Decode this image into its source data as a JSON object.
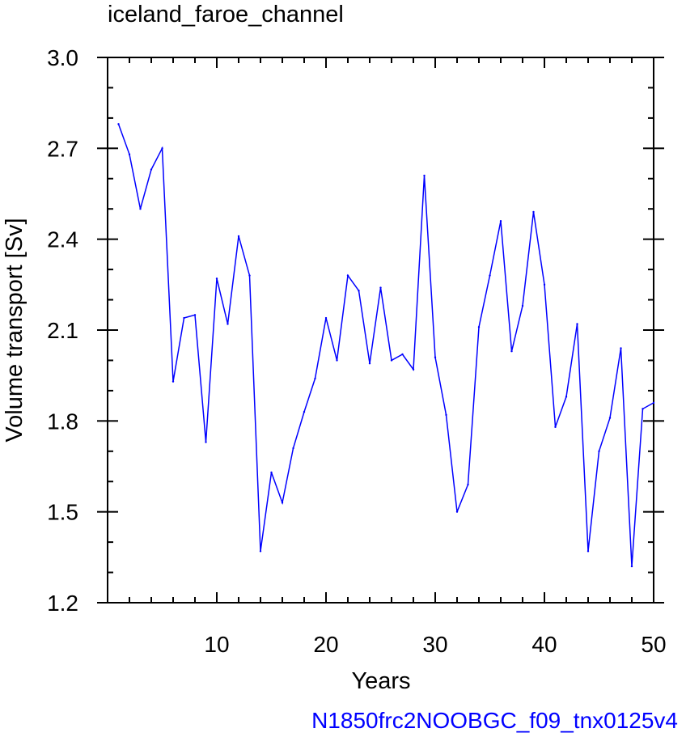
{
  "chart_data": {
    "type": "line",
    "title": "iceland_faroe_channel",
    "xlabel": "Years",
    "ylabel": "Volume transport [Sv]",
    "caption": "N1850frc2NOOBGC_f09_tnx0125v4",
    "xlim": [
      0,
      50
    ],
    "ylim": [
      1.2,
      3.0
    ],
    "xticks": [
      10,
      20,
      30,
      40,
      50
    ],
    "yticks": [
      "1.2",
      "1.5",
      "1.8",
      "2.1",
      "2.4",
      "2.7",
      "3.0"
    ],
    "grid": false,
    "colors": {
      "series": "#0000ff",
      "caption": "#0000ff",
      "axis": "#000000"
    },
    "series": [
      {
        "x": [
          1,
          2,
          3,
          4,
          5,
          6,
          7,
          8,
          9,
          10,
          11,
          12,
          13,
          14,
          15,
          16,
          17,
          18,
          19,
          20,
          21,
          22,
          23,
          24,
          25,
          26,
          27,
          28,
          29,
          30,
          31,
          32,
          33,
          34,
          35,
          36,
          37,
          38,
          39,
          40,
          41,
          42,
          43,
          44,
          45,
          46,
          47,
          48,
          49,
          50
        ],
        "values": [
          2.78,
          2.68,
          2.5,
          2.63,
          2.7,
          1.93,
          2.14,
          2.15,
          1.73,
          2.27,
          2.12,
          2.41,
          2.28,
          1.37,
          1.63,
          1.53,
          1.71,
          1.83,
          1.94,
          2.14,
          2.0,
          2.28,
          2.23,
          1.99,
          2.24,
          2.0,
          2.02,
          1.97,
          2.61,
          2.01,
          1.82,
          1.5,
          1.59,
          2.11,
          2.28,
          2.46,
          2.03,
          2.18,
          2.49,
          2.25,
          1.78,
          1.88,
          2.12,
          1.37,
          1.7,
          1.81,
          2.04,
          1.32,
          1.84,
          1.86
        ]
      }
    ]
  }
}
